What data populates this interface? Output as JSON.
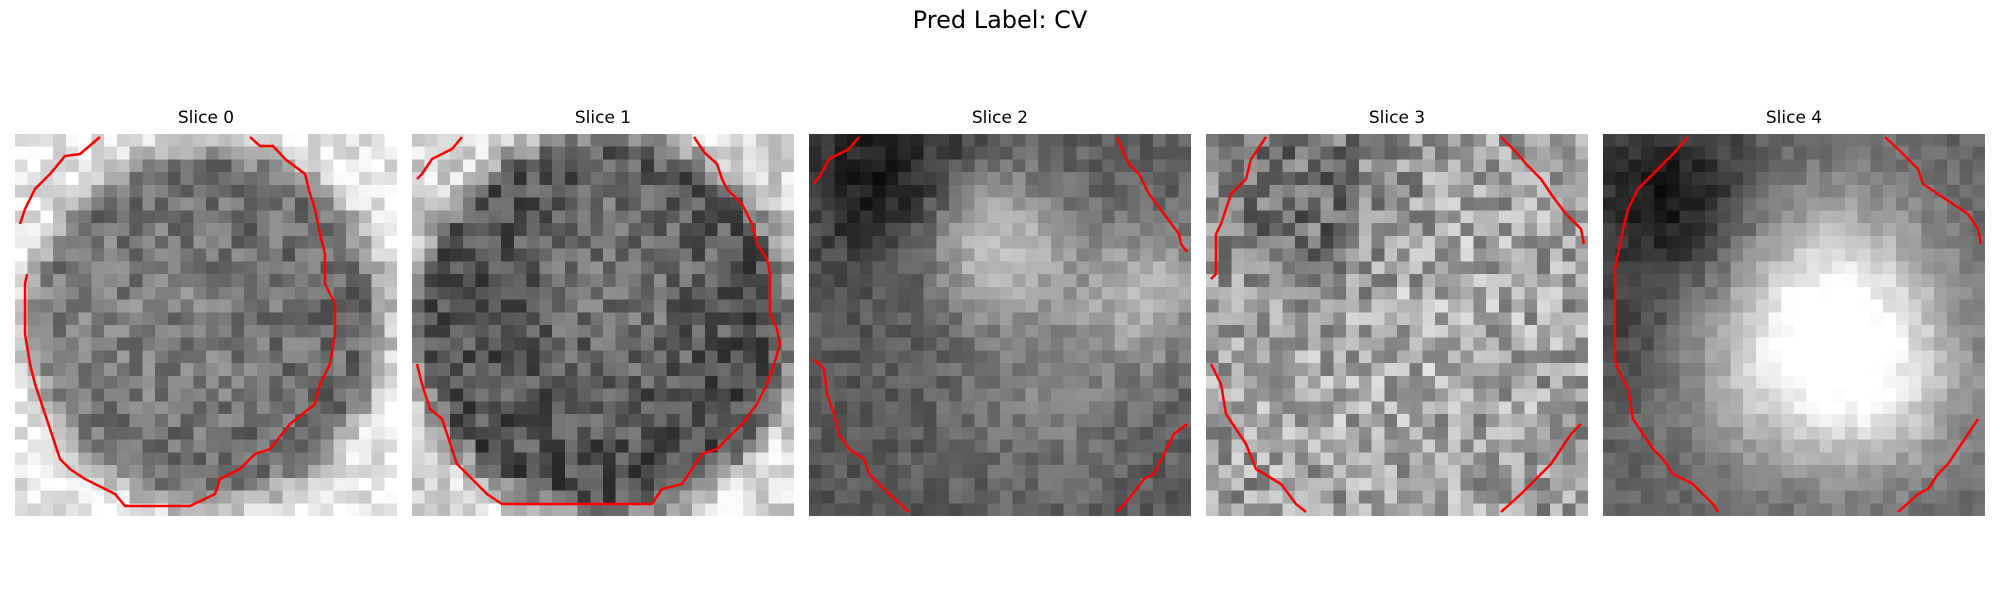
{
  "figure": {
    "title": "Pred Label: CV"
  },
  "contour_color": "#ff0000",
  "slices": [
    {
      "label": "Slice 0"
    },
    {
      "label": "Slice 1"
    },
    {
      "label": "Slice 2"
    },
    {
      "label": "Slice 3"
    },
    {
      "label": "Slice 4"
    }
  ]
}
